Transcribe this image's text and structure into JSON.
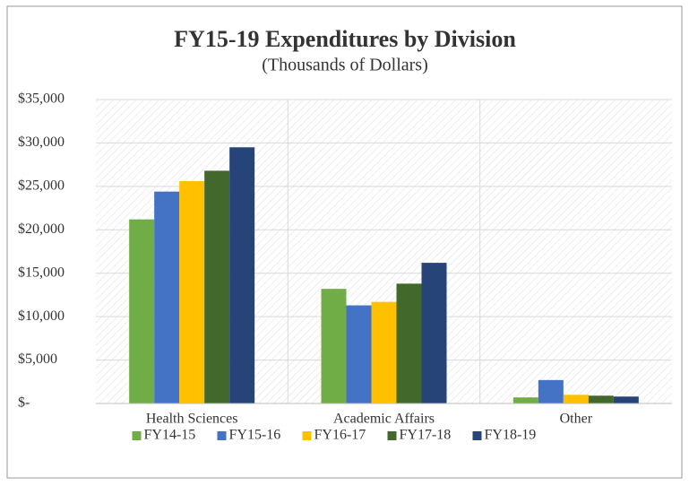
{
  "chart_data": {
    "type": "bar",
    "title": "FY15-19 Expenditures by Division",
    "subtitle": "(Thousands of Dollars)",
    "categories": [
      "Health Sciences",
      "Academic Affairs",
      "Other"
    ],
    "series": [
      {
        "name": "FY14-15",
        "color": "#70ad47",
        "values": [
          21200,
          13200,
          700
        ]
      },
      {
        "name": "FY15-16",
        "color": "#4472c4",
        "values": [
          24400,
          11300,
          2700
        ]
      },
      {
        "name": "FY16-17",
        "color": "#ffc000",
        "values": [
          25600,
          11700,
          1000
        ]
      },
      {
        "name": "FY17-18",
        "color": "#43682b",
        "values": [
          26800,
          13800,
          900
        ]
      },
      {
        "name": "FY18-19",
        "color": "#264478",
        "values": [
          29500,
          16200,
          800
        ]
      }
    ],
    "ylim": [
      0,
      35000
    ],
    "yticks": [
      {
        "value": 0,
        "label": "$-"
      },
      {
        "value": 5000,
        "label": "$5,000"
      },
      {
        "value": 10000,
        "label": "$10,000"
      },
      {
        "value": 15000,
        "label": "$15,000"
      },
      {
        "value": 20000,
        "label": "$20,000"
      },
      {
        "value": 25000,
        "label": "$25,000"
      },
      {
        "value": 30000,
        "label": "$30,000"
      },
      {
        "value": 35000,
        "label": "$35,000"
      }
    ],
    "grid": true,
    "legend": "bottom"
  }
}
